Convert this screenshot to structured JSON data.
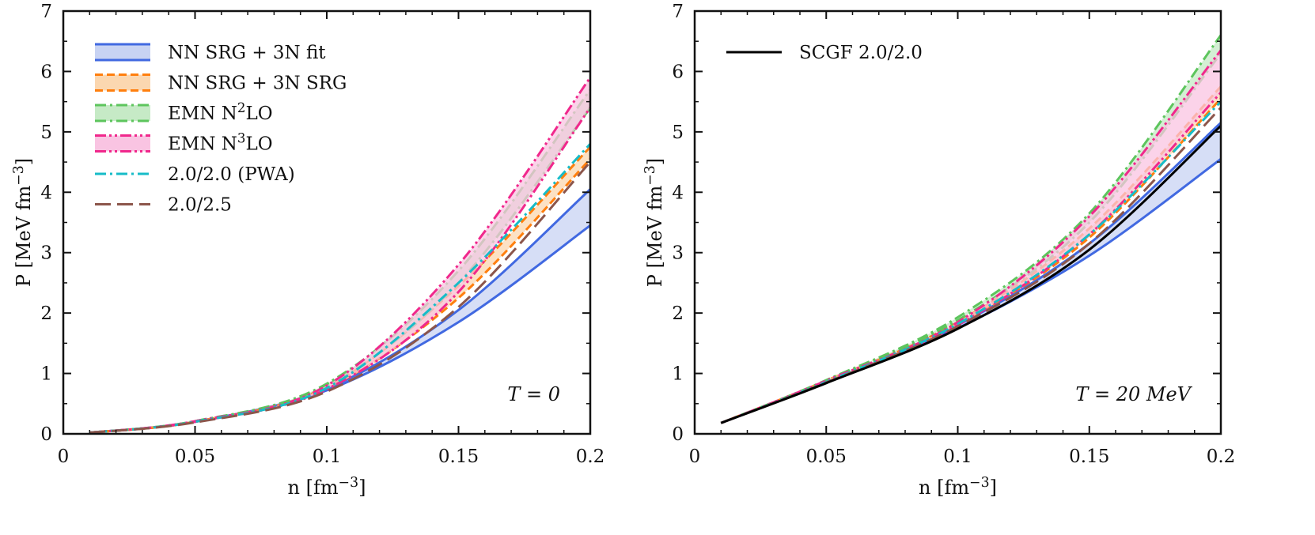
{
  "chart_data": [
    {
      "type": "line",
      "panel": "left",
      "annotation": "T = 0",
      "xlabel": "n [fm⁻³]",
      "ylabel": "P [MeV fm⁻³]",
      "xlim": [
        0,
        0.2
      ],
      "ylim": [
        0,
        7
      ],
      "xticks": [
        "0",
        "0.05",
        "0.1",
        "0.15",
        "0.2"
      ],
      "yticks": [
        "0",
        "1",
        "2",
        "3",
        "4",
        "5",
        "6",
        "7"
      ],
      "bands": [
        {
          "name": "NN SRG + 3N fit",
          "color": "#4169e1",
          "fill": "#c8d3f3",
          "x": [
            0.01,
            0.05,
            0.1,
            0.15,
            0.2
          ],
          "lower": [
            0.02,
            0.2,
            0.72,
            1.85,
            3.45
          ],
          "upper": [
            0.02,
            0.2,
            0.75,
            2.05,
            4.05
          ]
        },
        {
          "name": "NN SRG + 3N SRG",
          "color": "#ff7f0e",
          "fill": "#fbd7b0",
          "x": [
            0.01,
            0.05,
            0.1,
            0.15,
            0.2
          ],
          "lower": [
            0.02,
            0.2,
            0.76,
            2.25,
            4.55
          ],
          "upper": [
            0.02,
            0.2,
            0.78,
            2.45,
            4.75
          ]
        },
        {
          "name": "EMN N²LO",
          "color": "#5dc55d",
          "fill": "#c6eac6",
          "x": [
            0.01,
            0.05,
            0.1,
            0.15,
            0.2
          ],
          "lower": [
            0.02,
            0.21,
            0.8,
            2.5,
            5.4
          ],
          "upper": [
            0.02,
            0.21,
            0.83,
            2.7,
            5.7
          ]
        },
        {
          "name": "EMN N³LO",
          "color": "#f0288c",
          "fill": "#f9c4e2",
          "x": [
            0.01,
            0.05,
            0.1,
            0.15,
            0.2
          ],
          "lower": [
            0.02,
            0.2,
            0.74,
            2.35,
            5.4
          ],
          "upper": [
            0.02,
            0.21,
            0.8,
            2.8,
            5.9
          ]
        }
      ],
      "series": [
        {
          "name": "2.0/2.0 (PWA)",
          "color": "#17bcc8",
          "x": [
            0.01,
            0.05,
            0.1,
            0.15,
            0.2
          ],
          "values": [
            0.02,
            0.2,
            0.76,
            2.5,
            4.8
          ]
        },
        {
          "name": "2.0/2.5",
          "color": "#8c564b",
          "x": [
            0.01,
            0.05,
            0.1,
            0.15,
            0.2
          ],
          "values": [
            0.02,
            0.19,
            0.7,
            2.1,
            4.5
          ]
        }
      ],
      "legend": {
        "placement": "top-left",
        "entries": [
          {
            "label": "NN SRG + 3N fit",
            "style": "solid-band",
            "color": "#4169e1",
            "fill": "#c8d3f3"
          },
          {
            "label": "NN SRG + 3N SRG",
            "style": "dash-band",
            "color": "#ff7f0e",
            "fill": "#fbd7b0"
          },
          {
            "label": "EMN N²LO",
            "style": "dashdot-band",
            "color": "#5dc55d",
            "fill": "#c6eac6"
          },
          {
            "label": "EMN N³LO",
            "style": "dashdotdot-band",
            "color": "#f0288c",
            "fill": "#f9c4e2"
          },
          {
            "label": "2.0/2.0 (PWA)",
            "style": "dashdot",
            "color": "#17bcc8"
          },
          {
            "label": "2.0/2.5",
            "style": "longdash",
            "color": "#8c564b"
          }
        ]
      }
    },
    {
      "type": "line",
      "panel": "right",
      "annotation": "T = 20 MeV",
      "xlabel": "n [fm⁻³]",
      "ylabel": "P [MeV fm⁻³]",
      "xlim": [
        0,
        0.2
      ],
      "ylim": [
        0,
        7
      ],
      "xticks": [
        "0",
        "0.05",
        "0.1",
        "0.15",
        "0.2"
      ],
      "yticks": [
        "0",
        "1",
        "2",
        "3",
        "4",
        "5",
        "6",
        "7"
      ],
      "bands": [
        {
          "name": "NN SRG + 3N fit",
          "color": "#4169e1",
          "fill": "#c8d3f3",
          "x": [
            0.01,
            0.05,
            0.1,
            0.15,
            0.2
          ],
          "lower": [
            0.18,
            0.85,
            1.75,
            2.95,
            4.55
          ],
          "upper": [
            0.18,
            0.86,
            1.8,
            3.15,
            5.15
          ]
        },
        {
          "name": "NN SRG + 3N SRG",
          "color": "#ff7f0e",
          "fill": "#fbd7b0",
          "x": [
            0.01,
            0.05,
            0.1,
            0.15,
            0.2
          ],
          "lower": [
            0.18,
            0.87,
            1.82,
            3.25,
            5.55
          ],
          "upper": [
            0.18,
            0.88,
            1.85,
            3.4,
            5.75
          ]
        },
        {
          "name": "EMN N²LO",
          "color": "#5dc55d",
          "fill": "#c6eac6",
          "x": [
            0.01,
            0.05,
            0.1,
            0.15,
            0.2
          ],
          "lower": [
            0.18,
            0.88,
            1.88,
            3.5,
            6.3
          ],
          "upper": [
            0.18,
            0.89,
            1.93,
            3.65,
            6.6
          ]
        },
        {
          "name": "EMN N³LO",
          "color": "#f0288c",
          "fill": "#f9c4e2",
          "x": [
            0.01,
            0.05,
            0.1,
            0.15,
            0.2
          ],
          "lower": [
            0.18,
            0.86,
            1.8,
            3.3,
            5.65
          ],
          "upper": [
            0.18,
            0.88,
            1.85,
            3.6,
            6.35
          ]
        }
      ],
      "series": [
        {
          "name": "2.0/2.0 (PWA)",
          "color": "#17bcc8",
          "x": [
            0.01,
            0.05,
            0.1,
            0.15,
            0.2
          ],
          "values": [
            0.18,
            0.86,
            1.82,
            3.3,
            5.5
          ]
        },
        {
          "name": "2.0/2.5",
          "color": "#8c564b",
          "x": [
            0.01,
            0.05,
            0.1,
            0.15,
            0.2
          ],
          "values": [
            0.18,
            0.85,
            1.78,
            3.15,
            5.4
          ]
        },
        {
          "name": "SCGF 2.0/2.0",
          "color": "#000000",
          "x": [
            0.01,
            0.05,
            0.1,
            0.15,
            0.2
          ],
          "values": [
            0.18,
            0.84,
            1.74,
            3.05,
            5.1
          ]
        }
      ],
      "legend": {
        "placement": "top-left",
        "entries": [
          {
            "label": "SCGF 2.0/2.0",
            "style": "solid",
            "color": "#000000"
          }
        ]
      }
    }
  ]
}
